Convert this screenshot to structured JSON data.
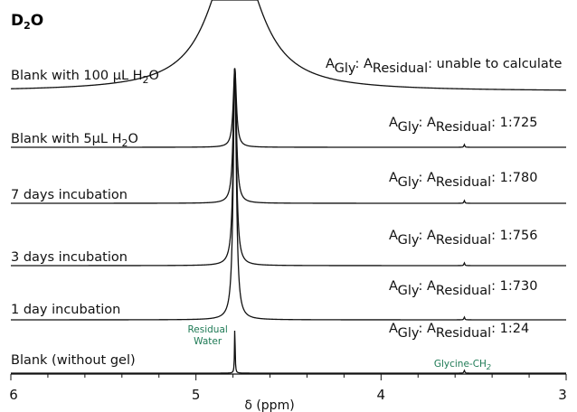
{
  "colors": {
    "trace": "#111111",
    "annotation": "#1e7a55"
  },
  "chart_data": {
    "type": "line",
    "title": "D",
    "title_sub": "2",
    "title_tail": "O",
    "xlabel": "δ (ppm)",
    "xlim": [
      6,
      3
    ],
    "x_reversed": true,
    "x_ticks": [
      6,
      5,
      4,
      3
    ],
    "grid": false,
    "ratio_prefix": "A",
    "ratio_sub_gly": "Gly",
    "ratio_sep": ": A",
    "ratio_sub_res": "Residual",
    "series": [
      {
        "name": "Blank with 100 μL H2O",
        "label_parts": [
          "Blank with 100 ",
          "μ",
          "L H",
          "2",
          "O"
        ],
        "ratio": "unable to calculate",
        "water_peak_ppm": 4.79,
        "water_peak_width_ppm": 0.32,
        "truncated": true
      },
      {
        "name": "Blank with 5μL H2O",
        "label_parts": [
          "Blank with 5",
          "μ",
          "L H",
          "2",
          "O"
        ],
        "ratio": "1:725",
        "water_peak_ppm": 4.79,
        "water_peak_width_ppm": 0.02,
        "glycine_peak_ppm": 3.55
      },
      {
        "name": "7 days incubation",
        "label_parts": [
          "7 days incubation"
        ],
        "ratio": "1:780",
        "water_peak_ppm": 4.79,
        "water_peak_width_ppm": 0.02,
        "glycine_peak_ppm": 3.55
      },
      {
        "name": "3 days incubation",
        "label_parts": [
          "3 days incubation"
        ],
        "ratio": "1:756",
        "water_peak_ppm": 4.79,
        "water_peak_width_ppm": 0.02,
        "glycine_peak_ppm": 3.55
      },
      {
        "name": "1 day incubation",
        "label_parts": [
          "1 day incubation"
        ],
        "ratio": "1:730",
        "water_peak_ppm": 4.79,
        "water_peak_width_ppm": 0.02,
        "glycine_peak_ppm": 3.55
      },
      {
        "name": "Blank (without gel)",
        "label_parts": [
          "Blank (without gel)"
        ],
        "ratio": "1:24",
        "water_peak_ppm": 4.79,
        "water_peak_width_ppm": 0.004,
        "glycine_peak_ppm": 3.55
      }
    ],
    "annotations": [
      {
        "text_lines": [
          "Residual",
          "Water"
        ],
        "ppm": 4.79
      },
      {
        "text": "Glycine-CH",
        "text_sub": "2",
        "ppm": 3.55
      }
    ]
  }
}
